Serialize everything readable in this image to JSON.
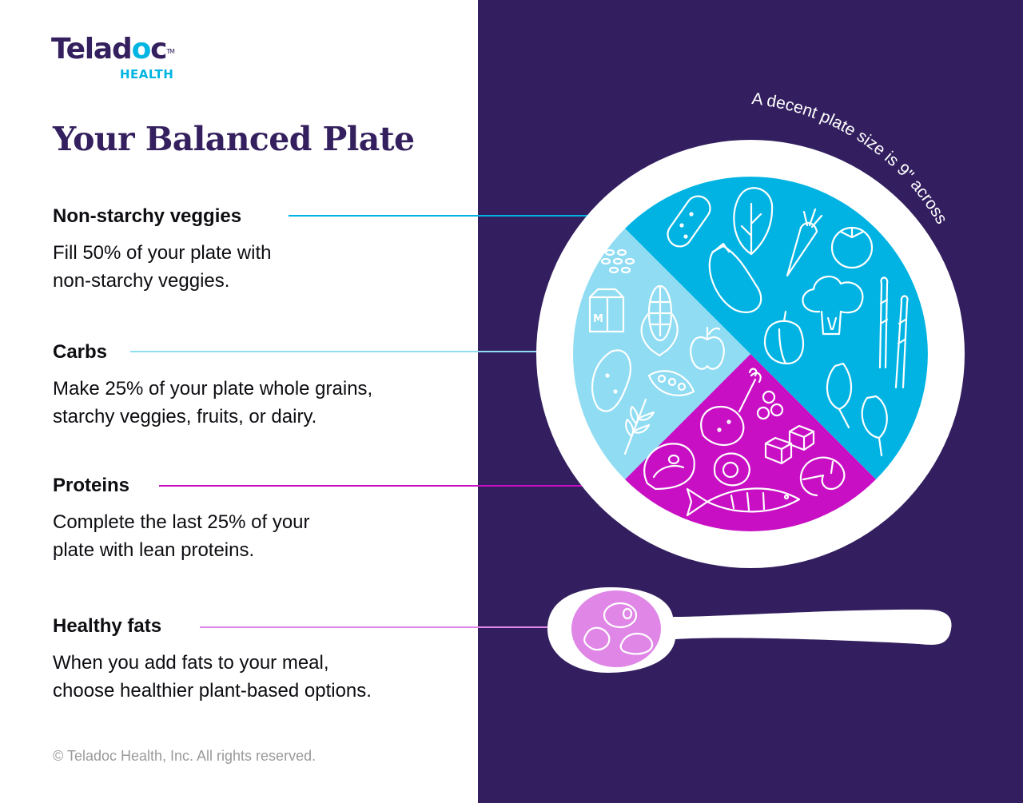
{
  "brand": {
    "name_part1": "Telad",
    "name_o": "o",
    "name_part2": "c",
    "tm": "TM",
    "sub": "HEALTH"
  },
  "title": "Your Balanced Plate",
  "sections": [
    {
      "title": "Non-starchy veggies",
      "body": "Fill 50% of your plate with\nnon-starchy veggies.",
      "color": "#00b3e3"
    },
    {
      "title": "Carbs",
      "body": "Make 25% of your plate whole grains,\nstarchy veggies, fruits, or dairy.",
      "color": "#8fdcf3"
    },
    {
      "title": "Proteins",
      "body": "Complete the last 25% of your\nplate with lean proteins.",
      "color": "#c80fc4"
    },
    {
      "title": "Healthy fats",
      "body": "When you add fats to your meal,\nchoose healthier plant-based options.",
      "color": "#df86e6"
    }
  ],
  "plate": {
    "arc_label": "A decent plate size is 9\" across",
    "portions": [
      {
        "name": "Non-starchy veggies",
        "percent": 50
      },
      {
        "name": "Carbs",
        "percent": 25
      },
      {
        "name": "Proteins",
        "percent": 25
      }
    ],
    "icons": {
      "veggies": [
        "cucumber-icon",
        "lettuce-icon",
        "carrot-icon",
        "tomato-icon",
        "eggplant-icon",
        "broccoli-icon",
        "pepper-icon",
        "asparagus-icon",
        "spinach-icon"
      ],
      "carbs": [
        "rice-icon",
        "milk-carton-icon",
        "corn-icon",
        "apple-icon",
        "potato-icon",
        "pea-pod-icon",
        "wheat-icon"
      ],
      "proteins": [
        "drumstick-icon",
        "beans-icon",
        "tofu-icon",
        "steak-icon",
        "egg-icon",
        "shrimp-icon",
        "fish-icon"
      ],
      "fats": [
        "nuts-icon"
      ]
    },
    "milk_letter": "M"
  },
  "copyright": "© Teladoc Health, Inc. All rights reserved.",
  "colors": {
    "panel": "#331f5f",
    "title": "#34205e",
    "plate": "#ffffff",
    "veggies": "#00b3e3",
    "carbs": "#8fdcf3",
    "proteins": "#c80fc4",
    "fats": "#df86e6"
  }
}
